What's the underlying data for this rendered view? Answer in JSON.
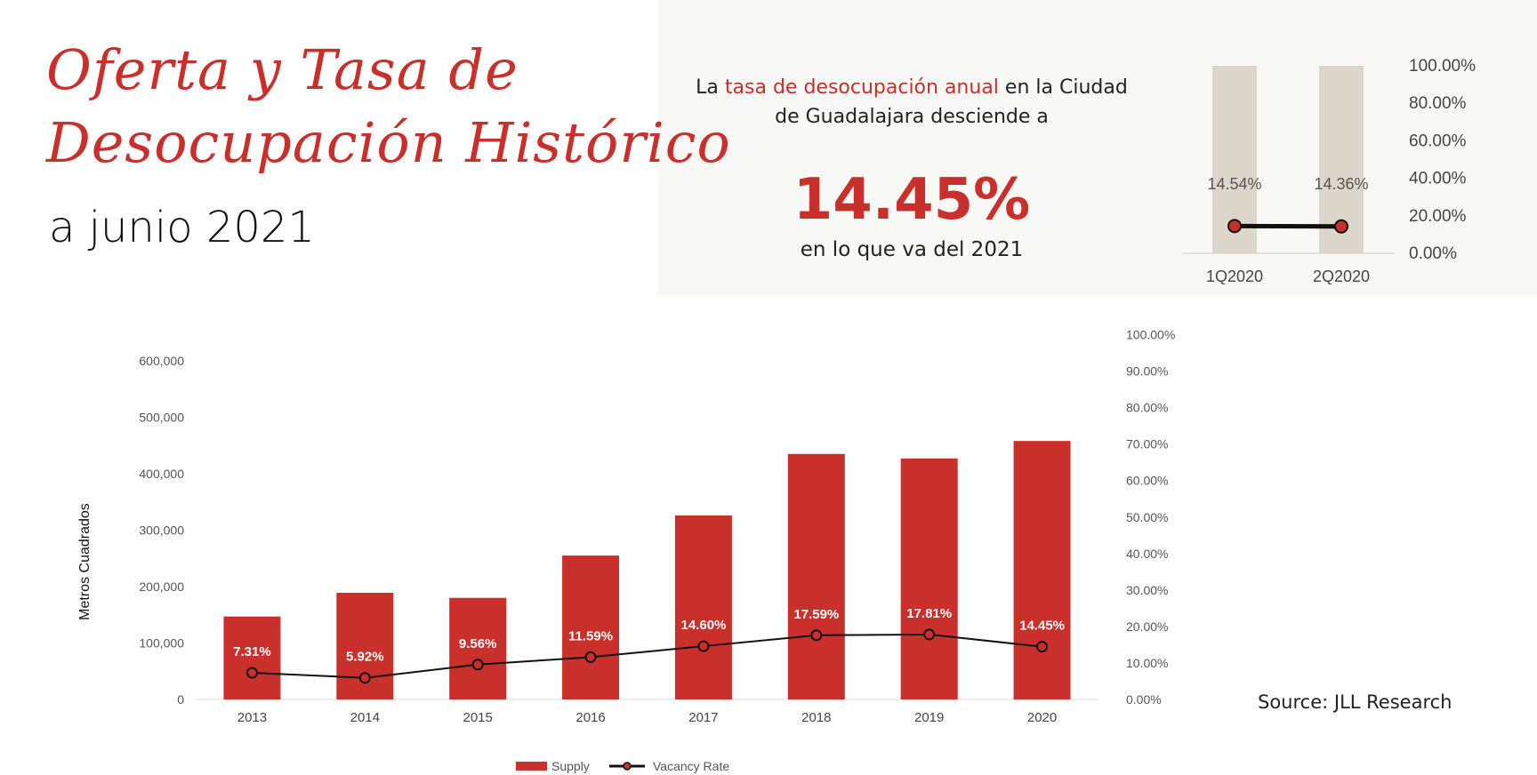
{
  "header": {
    "title_line1": "Oferta y Tasa de",
    "title_line2": "Desocupación Histórico",
    "subtitle": "a junio 2021"
  },
  "highlight": {
    "text_before": "La ",
    "text_highlight": "tasa de desocupación anual",
    "text_after": " en la Ciudad de Guadalajara desciende a",
    "value": "14.45%",
    "note": "en lo que va del 2021"
  },
  "source": "Source: JLL Research",
  "colors": {
    "accent": "#c9302c",
    "bar_light": "#dcd6cb",
    "panel_bg": "#f8f8f6"
  },
  "chart_data": [
    {
      "type": "bar",
      "categories": [
        "2013",
        "2014",
        "2015",
        "2016",
        "2017",
        "2018",
        "2019",
        "2020"
      ],
      "ylabel": "Metros Cuadrados",
      "ylim": [
        0,
        650000
      ],
      "yticks": [
        "0",
        "100,000",
        "200,000",
        "300,000",
        "400,000",
        "500,000",
        "600,000"
      ],
      "ytick_values": [
        0,
        100000,
        200000,
        300000,
        400000,
        500000,
        600000
      ],
      "y2lim": [
        0,
        100
      ],
      "y2ticks": [
        "0.00%",
        "10.00%",
        "20.00%",
        "30.00%",
        "40.00%",
        "50.00%",
        "60.00%",
        "70.00%",
        "80.00%",
        "90.00%",
        "100.00%"
      ],
      "series": [
        {
          "name": "Supply",
          "type": "bar",
          "values": [
            147000,
            189000,
            180000,
            255000,
            326000,
            435000,
            427000,
            458000
          ]
        },
        {
          "name": "Vacancy Rate",
          "type": "line",
          "axis": "right",
          "values": [
            7.31,
            5.92,
            9.56,
            11.59,
            14.6,
            17.59,
            17.81,
            14.45
          ],
          "labels": [
            "7.31%",
            "5.92%",
            "9.56%",
            "11.59%",
            "14.60%",
            "17.59%",
            "17.81%",
            "14.45%"
          ]
        }
      ],
      "legend": "bottom-center"
    },
    {
      "type": "bar",
      "categories": [
        "1Q2020",
        "2Q2020"
      ],
      "bar_values": [
        100,
        100
      ],
      "line_values": [
        14.54,
        14.36
      ],
      "labels": [
        "14.54%",
        "14.36%"
      ],
      "y2ticks": [
        "0.00%",
        "20.00%",
        "40.00%",
        "60.00%",
        "80.00%",
        "100.00%"
      ],
      "y2lim": [
        0,
        100
      ]
    }
  ]
}
